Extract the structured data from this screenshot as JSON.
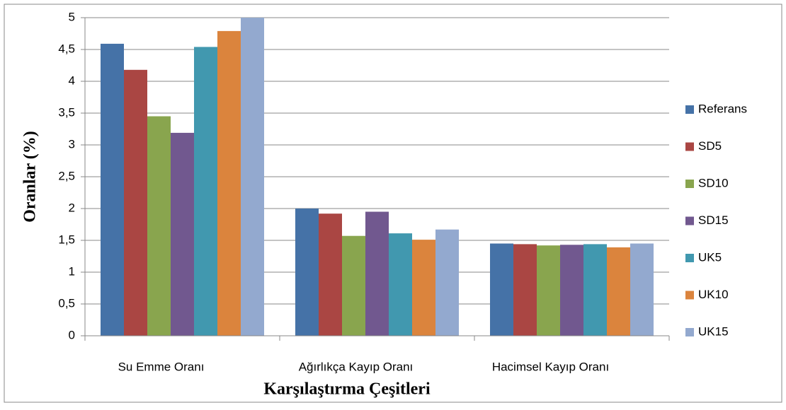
{
  "chart_data": {
    "type": "bar",
    "ylabel": "Oranlar (%)",
    "xlabel": "Karşılaştırma Çeşitleri",
    "categories": [
      "Su Emme Oranı",
      "Ağırlıkça Kayıp Oranı",
      "Hacimsel Kayıp Oranı"
    ],
    "series": [
      {
        "name": "Referans",
        "color": "#4572a7",
        "values": [
          4.59,
          2.0,
          1.45
        ]
      },
      {
        "name": "SD5",
        "color": "#aa4643",
        "values": [
          4.18,
          1.92,
          1.44
        ]
      },
      {
        "name": "SD10",
        "color": "#89a54e",
        "values": [
          3.45,
          1.57,
          1.42
        ]
      },
      {
        "name": "SD15",
        "color": "#71588f",
        "values": [
          3.19,
          1.95,
          1.43
        ]
      },
      {
        "name": "UK5",
        "color": "#4198af",
        "values": [
          4.54,
          1.61,
          1.44
        ]
      },
      {
        "name": "UK10",
        "color": "#db843d",
        "values": [
          4.79,
          1.51,
          1.39
        ]
      },
      {
        "name": "UK15",
        "color": "#93a9cf",
        "values": [
          5.0,
          1.67,
          1.45
        ]
      }
    ],
    "ylim": [
      0,
      5
    ],
    "yticks": [
      0,
      {
        "value": 0.5,
        "label": "0,5"
      },
      1,
      {
        "value": 1.5,
        "label": "1,5"
      },
      2,
      {
        "value": 2.5,
        "label": "2,5"
      },
      3,
      {
        "value": 3.5,
        "label": "3,5"
      },
      4,
      {
        "value": 4.5,
        "label": "4,5"
      },
      5
    ],
    "grid": true,
    "legend": "right"
  }
}
